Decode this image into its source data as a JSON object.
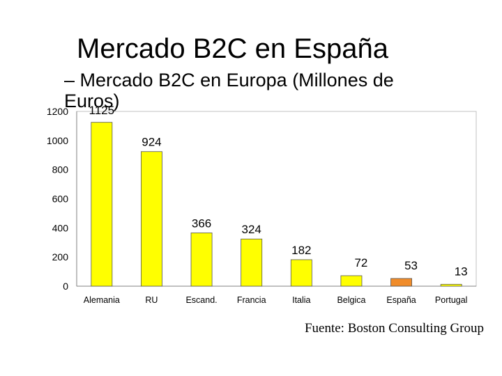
{
  "slide": {
    "title": "Mercado B2C en España",
    "subtitle": "– Mercado B2C en Europa (Millones de Euros)",
    "source": "Fuente: Boston Consulting Group"
  },
  "chart_data": {
    "type": "bar",
    "categories": [
      "Alemania",
      "RU",
      "Escand.",
      "Francia",
      "Italia",
      "Belgica",
      "España",
      "Portugal"
    ],
    "values": [
      1125,
      924,
      366,
      324,
      182,
      72,
      53,
      13
    ],
    "value_labels": [
      "1125",
      "924",
      "366",
      "324",
      "182",
      "72",
      "53",
      "13"
    ],
    "yticks": [
      "0",
      "200",
      "400",
      "600",
      "800",
      "1000",
      "1200"
    ],
    "ylim": [
      0,
      1200
    ],
    "grid": false,
    "legend": "none",
    "colors": {
      "bar": "#FFFF00",
      "highlight": "#F08C2A",
      "highlight_category": "España",
      "axis": "#808080",
      "frame": "#C0C0C0",
      "bar_stroke": "#555555"
    }
  }
}
